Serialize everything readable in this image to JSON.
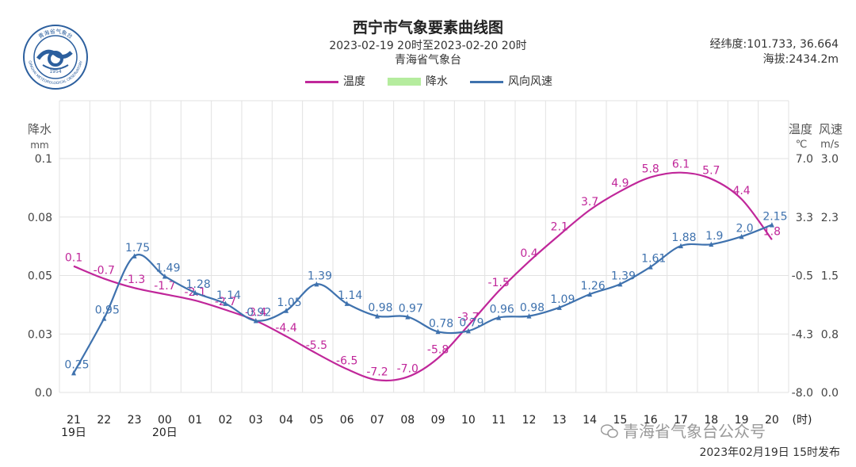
{
  "header": {
    "title": "西宁市气象要素曲线图",
    "subtitle": "2023-02-19 20时至2023-02-20 20时",
    "source": "青海省气象台",
    "coords": "经纬度:101.733, 36.664",
    "altitude": "海拔:2434.2m"
  },
  "logo": {
    "icon": "meteorological-seal-icon",
    "text_top": "青海省气象台",
    "text_bottom": "QINGHAI METEOROLOGICAL OBSERVATORY",
    "year": "1954"
  },
  "legend": {
    "temp_label": "温度",
    "precip_label": "降水",
    "wind_label": "风向风速",
    "temp_color": "#c0279a",
    "precip_color": "#b5ec9e",
    "wind_color": "#3f72ae"
  },
  "footer": {
    "published": "2023年02月19日  15时发布",
    "watermark": "青海省气象台公众号",
    "watermark_icon": "wechat-icon"
  },
  "chart_data": {
    "type": "line",
    "grid": true,
    "x_categories": [
      "21",
      "22",
      "23",
      "00",
      "01",
      "02",
      "03",
      "04",
      "05",
      "06",
      "07",
      "08",
      "09",
      "10",
      "11",
      "12",
      "13",
      "14",
      "15",
      "16",
      "17",
      "18",
      "19",
      "20"
    ],
    "x_sublabels": {
      "21": "19日",
      "00": "20日"
    },
    "x_unit_label": "(时)",
    "axes": {
      "precip": {
        "title": "降水",
        "unit": "mm",
        "ticks": [
          "0.0",
          "0.03",
          "0.05",
          "0.08",
          "0.1"
        ],
        "ylim": [
          0,
          0.1
        ]
      },
      "temp": {
        "title": "温度",
        "unit": "℃",
        "ticks": [
          "-8.0",
          "-4.3",
          "-0.5",
          "3.3",
          "7.0"
        ],
        "ylim": [
          -8.0,
          7.0
        ]
      },
      "wind": {
        "title": "风速",
        "unit": "m/s",
        "ticks": [
          "0.0",
          "0.8",
          "1.5",
          "2.3",
          "3.0"
        ],
        "ylim": [
          0,
          3.0
        ]
      }
    },
    "series": [
      {
        "name": "温度",
        "axis": "temp",
        "values": [
          0.1,
          -0.7,
          -1.3,
          -1.7,
          -2.1,
          -2.7,
          -3.4,
          -4.4,
          -5.5,
          -6.5,
          -7.2,
          -7.0,
          -5.8,
          -3.7,
          -1.5,
          0.4,
          2.1,
          3.7,
          4.9,
          5.8,
          6.1,
          5.7,
          4.4,
          1.8
        ],
        "labels": [
          "0.1",
          "-0.7",
          "-1.3",
          "-1.7",
          "-2.1",
          "-2.7",
          "-3.4",
          "-4.4",
          "-5.5",
          "-6.5",
          "-7.2",
          "-7.0",
          "-5.8",
          "-3.7",
          "-1.5",
          "0.4",
          "2.1",
          "3.7",
          "4.9",
          "5.8",
          "6.1",
          "5.7",
          "4.4",
          "1.8"
        ]
      },
      {
        "name": "降水",
        "axis": "precip",
        "values": [
          0,
          0,
          0,
          0,
          0,
          0,
          0,
          0,
          0,
          0,
          0,
          0,
          0,
          0,
          0,
          0,
          0,
          0,
          0,
          0,
          0,
          0,
          0,
          0
        ]
      },
      {
        "name": "风向风速",
        "axis": "wind",
        "values": [
          0.25,
          0.95,
          1.75,
          1.49,
          1.28,
          1.14,
          0.92,
          1.05,
          1.39,
          1.14,
          0.98,
          0.97,
          0.78,
          0.79,
          0.96,
          0.98,
          1.09,
          1.26,
          1.39,
          1.61,
          1.88,
          1.9,
          2.0,
          2.15
        ],
        "labels": [
          "0.25",
          "0.95",
          "1.75",
          "1.49",
          "1.28",
          "1.14",
          "0.92",
          "1.05",
          "1.39",
          "1.14",
          "0.98",
          "0.97",
          "0.78",
          "0.79",
          "0.96",
          "0.98",
          "1.09",
          "1.26",
          "1.39",
          "1.61",
          "1.88",
          "1.9",
          "2.0",
          "2.15"
        ]
      }
    ]
  }
}
